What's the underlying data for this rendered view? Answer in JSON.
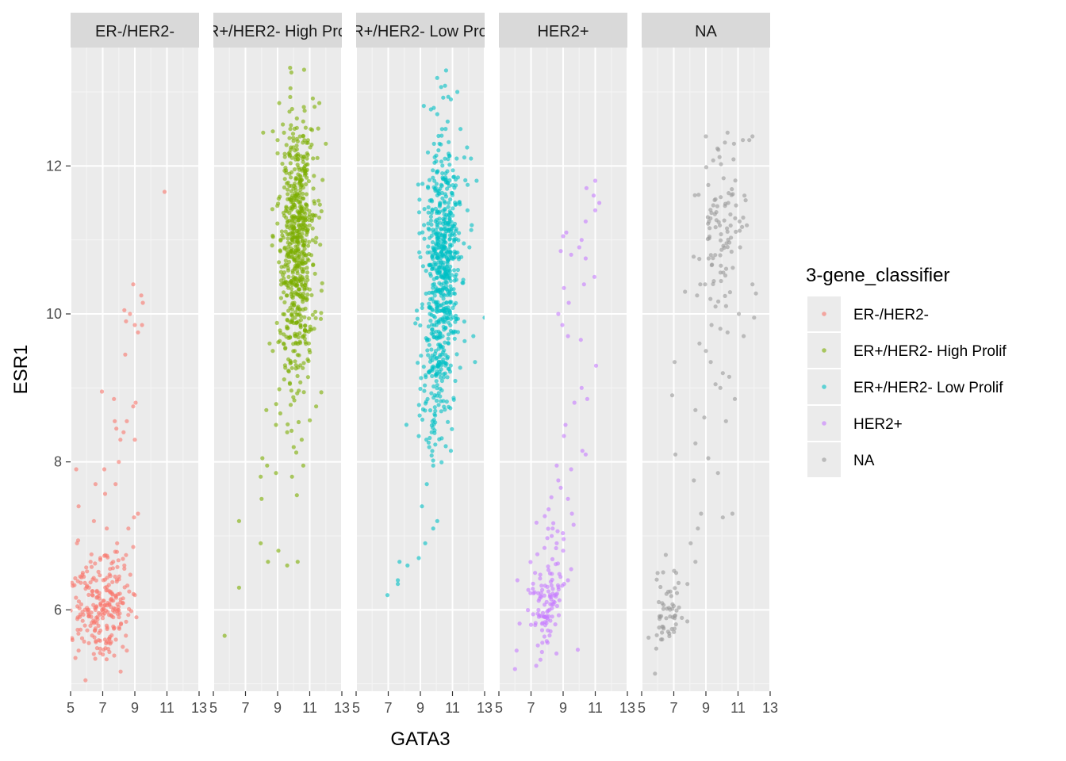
{
  "chart_data": {
    "type": "scatter",
    "facet_by": "3-gene_classifier",
    "xlabel": "GATA3",
    "ylabel": "ESR1",
    "xlim": [
      5,
      13
    ],
    "ylim": [
      4.9,
      13.6
    ],
    "x_ticks": [
      5,
      7,
      9,
      11,
      13
    ],
    "y_ticks": [
      6,
      8,
      10,
      12
    ],
    "grid": true,
    "point_alpha": 0.6,
    "legend": {
      "title": "3-gene_classifier",
      "placement": "right",
      "entries": [
        "ER-/HER2-",
        "ER+/HER2- High Prolif",
        "ER+/HER2- Low Prolif",
        "HER2+",
        "NA"
      ]
    },
    "facets": [
      {
        "label": "ER-/HER2-",
        "color": "#F8766D",
        "points": [
          [
            10.85,
            11.65
          ],
          [
            8.9,
            10.4
          ],
          [
            9.4,
            10.25
          ],
          [
            9.5,
            10.15
          ],
          [
            8.35,
            10.05
          ],
          [
            8.7,
            10.0
          ],
          [
            8.45,
            9.9
          ],
          [
            9.0,
            9.85
          ],
          [
            9.45,
            9.85
          ],
          [
            9.2,
            9.75
          ],
          [
            8.4,
            9.45
          ],
          [
            6.95,
            8.95
          ],
          [
            7.7,
            8.85
          ],
          [
            9.05,
            8.8
          ],
          [
            8.9,
            8.75
          ],
          [
            5.35,
            7.9
          ],
          [
            8.5,
            8.55
          ],
          [
            7.75,
            8.55
          ],
          [
            7.85,
            8.45
          ],
          [
            8.3,
            8.4
          ],
          [
            8.1,
            8.3
          ],
          [
            9.0,
            8.3
          ],
          [
            8.0,
            8.0
          ],
          [
            7.1,
            7.9
          ],
          [
            6.55,
            7.7
          ],
          [
            7.8,
            7.7
          ],
          [
            5.5,
            7.4
          ],
          [
            9.2,
            7.3
          ],
          [
            8.95,
            7.25
          ],
          [
            6.45,
            7.2
          ],
          [
            7.25,
            7.1
          ],
          [
            8.6,
            7.1
          ],
          [
            5.4,
            6.9
          ],
          [
            7.9,
            6.9
          ],
          [
            8.9,
            6.85
          ],
          [
            6.3,
            6.75
          ],
          [
            6.85,
            6.7
          ],
          [
            7.65,
            6.65
          ],
          [
            8.35,
            6.6
          ],
          [
            5.6,
            6.45
          ],
          [
            6.15,
            6.3
          ],
          [
            9.0,
            6.2
          ],
          [
            8.1,
            6.1
          ],
          [
            5.45,
            5.9
          ],
          [
            9.1,
            5.9
          ],
          [
            6.55,
            5.75
          ],
          [
            5.5,
            5.45
          ],
          [
            5.3,
            5.35
          ],
          [
            8.5,
            5.45
          ],
          [
            8.25,
            5.5
          ]
        ],
        "clusters": [
          [
            6.85,
            6.0,
            0.85,
            0.33,
            190
          ],
          [
            7.8,
            6.2,
            0.65,
            0.45,
            40
          ]
        ]
      },
      {
        "label": "ER+/HER2- High Prolif",
        "color": "#7CAE00",
        "points": [
          [
            10.65,
            13.3
          ],
          [
            9.8,
            13.05
          ],
          [
            9.1,
            12.85
          ],
          [
            11.6,
            12.85
          ],
          [
            11.3,
            12.8
          ],
          [
            8.1,
            12.45
          ],
          [
            9.0,
            12.35
          ],
          [
            12.0,
            12.3
          ],
          [
            8.5,
            9.6
          ],
          [
            8.7,
            9.5
          ],
          [
            8.3,
            8.7
          ],
          [
            8.9,
            8.5
          ],
          [
            9.6,
            8.4
          ],
          [
            10.5,
            8.3
          ],
          [
            10.0,
            8.2
          ],
          [
            11.4,
            8.75
          ],
          [
            10.6,
            7.95
          ],
          [
            8.05,
            8.05
          ],
          [
            8.35,
            7.95
          ],
          [
            8.9,
            7.85
          ],
          [
            7.95,
            7.8
          ],
          [
            9.9,
            7.8
          ],
          [
            10.2,
            7.55
          ],
          [
            8.0,
            7.5
          ],
          [
            6.6,
            7.2
          ],
          [
            7.95,
            6.9
          ],
          [
            9.05,
            6.8
          ],
          [
            8.4,
            6.65
          ],
          [
            9.6,
            6.6
          ],
          [
            10.25,
            6.65
          ],
          [
            6.6,
            6.3
          ],
          [
            5.7,
            5.65
          ]
        ],
        "clusters": [
          [
            10.25,
            11.1,
            0.55,
            0.8,
            560
          ],
          [
            10.0,
            9.7,
            0.55,
            0.55,
            100
          ]
        ]
      },
      {
        "label": "ER+/HER2- Low Prolif",
        "color": "#00BFC4",
        "points": [
          [
            11.3,
            13.0
          ],
          [
            10.9,
            12.9
          ],
          [
            10.05,
            12.7
          ],
          [
            10.7,
            12.6
          ],
          [
            11.5,
            12.5
          ],
          [
            12.15,
            12.1
          ],
          [
            12.5,
            11.8
          ],
          [
            12.2,
            11.2
          ],
          [
            12.05,
            10.9
          ],
          [
            13.0,
            9.95
          ],
          [
            12.3,
            9.7
          ],
          [
            12.4,
            9.35
          ],
          [
            10.9,
            8.15
          ],
          [
            9.55,
            8.2
          ],
          [
            9.8,
            7.95
          ],
          [
            9.4,
            7.7
          ],
          [
            9.1,
            7.4
          ],
          [
            10.05,
            7.2
          ],
          [
            9.8,
            7.1
          ],
          [
            9.3,
            6.9
          ],
          [
            8.9,
            6.7
          ],
          [
            8.2,
            6.6
          ],
          [
            7.7,
            6.65
          ],
          [
            7.6,
            6.4
          ],
          [
            7.6,
            6.35
          ],
          [
            6.95,
            6.2
          ]
        ],
        "clusters": [
          [
            10.4,
            10.75,
            0.55,
            0.85,
            600
          ],
          [
            9.9,
            9.2,
            0.55,
            0.45,
            100
          ],
          [
            9.75,
            8.3,
            0.3,
            0.35,
            14
          ]
        ]
      },
      {
        "label": "HER2+",
        "color": "#C77CFF",
        "points": [
          [
            11.0,
            11.8
          ],
          [
            10.45,
            11.7
          ],
          [
            10.9,
            11.6
          ],
          [
            11.25,
            11.5
          ],
          [
            11.0,
            11.4
          ],
          [
            10.4,
            11.25
          ],
          [
            9.2,
            11.1
          ],
          [
            9.0,
            11.05
          ],
          [
            10.15,
            11.0
          ],
          [
            10.0,
            10.9
          ],
          [
            8.85,
            10.85
          ],
          [
            9.5,
            10.8
          ],
          [
            10.4,
            10.75
          ],
          [
            10.95,
            10.5
          ],
          [
            10.3,
            10.4
          ],
          [
            9.05,
            10.35
          ],
          [
            9.35,
            10.15
          ],
          [
            8.7,
            10.0
          ],
          [
            8.95,
            9.85
          ],
          [
            9.3,
            9.7
          ],
          [
            10.1,
            9.65
          ],
          [
            11.05,
            9.3
          ],
          [
            10.15,
            9.0
          ],
          [
            10.5,
            8.85
          ],
          [
            9.7,
            8.8
          ],
          [
            9.15,
            8.5
          ],
          [
            9.05,
            8.35
          ],
          [
            10.2,
            8.15
          ],
          [
            10.4,
            8.1
          ],
          [
            8.6,
            7.95
          ],
          [
            9.5,
            7.9
          ],
          [
            8.7,
            7.75
          ],
          [
            8.85,
            7.65
          ],
          [
            9.3,
            7.5
          ],
          [
            9.55,
            7.3
          ],
          [
            9.65,
            7.15
          ],
          [
            8.35,
            7.1
          ],
          [
            8.6,
            6.9
          ],
          [
            9.0,
            6.8
          ],
          [
            9.5,
            6.55
          ],
          [
            9.3,
            6.4
          ],
          [
            6.15,
            6.4
          ],
          [
            7.25,
            6.5
          ],
          [
            6.0,
            5.2
          ],
          [
            6.1,
            5.45
          ]
        ],
        "clusters": [
          [
            7.95,
            6.0,
            0.65,
            0.3,
            100
          ],
          [
            8.3,
            6.9,
            0.55,
            0.4,
            18
          ]
        ]
      },
      {
        "label": "NA",
        "color": "#999999",
        "points": [
          [
            9.0,
            12.4
          ],
          [
            11.9,
            12.4
          ],
          [
            11.7,
            12.35
          ],
          [
            11.3,
            12.35
          ],
          [
            10.35,
            12.45
          ],
          [
            10.75,
            12.3
          ],
          [
            11.4,
            11.6
          ],
          [
            9.6,
            11.55
          ],
          [
            11.9,
            10.4
          ],
          [
            11.05,
            10.0
          ],
          [
            12.0,
            9.95
          ],
          [
            11.35,
            9.7
          ],
          [
            8.65,
            10.4
          ],
          [
            8.95,
            10.4
          ],
          [
            8.45,
            10.25
          ],
          [
            7.7,
            10.3
          ],
          [
            9.6,
            10.1
          ],
          [
            9.35,
            9.85
          ],
          [
            9.9,
            9.8
          ],
          [
            10.35,
            9.75
          ],
          [
            8.6,
            9.6
          ],
          [
            9.0,
            9.5
          ],
          [
            9.3,
            9.35
          ],
          [
            10.05,
            9.2
          ],
          [
            10.45,
            9.15
          ],
          [
            9.6,
            9.05
          ],
          [
            9.9,
            9.0
          ],
          [
            7.05,
            9.35
          ],
          [
            6.9,
            8.9
          ],
          [
            8.35,
            8.7
          ],
          [
            8.9,
            8.6
          ],
          [
            10.8,
            8.85
          ],
          [
            10.25,
            8.55
          ],
          [
            8.35,
            8.25
          ],
          [
            9.15,
            8.05
          ],
          [
            9.75,
            7.85
          ],
          [
            8.25,
            7.75
          ],
          [
            7.1,
            8.1
          ],
          [
            8.7,
            7.3
          ],
          [
            10.05,
            7.25
          ],
          [
            10.65,
            7.3
          ],
          [
            8.05,
            6.9
          ],
          [
            8.35,
            6.65
          ],
          [
            7.85,
            6.35
          ],
          [
            8.5,
            7.1
          ],
          [
            7.15,
            6.5
          ]
        ],
        "clusters": [
          [
            9.95,
            11.2,
            0.7,
            0.5,
            90
          ],
          [
            6.55,
            5.9,
            0.55,
            0.3,
            55
          ]
        ]
      }
    ]
  }
}
